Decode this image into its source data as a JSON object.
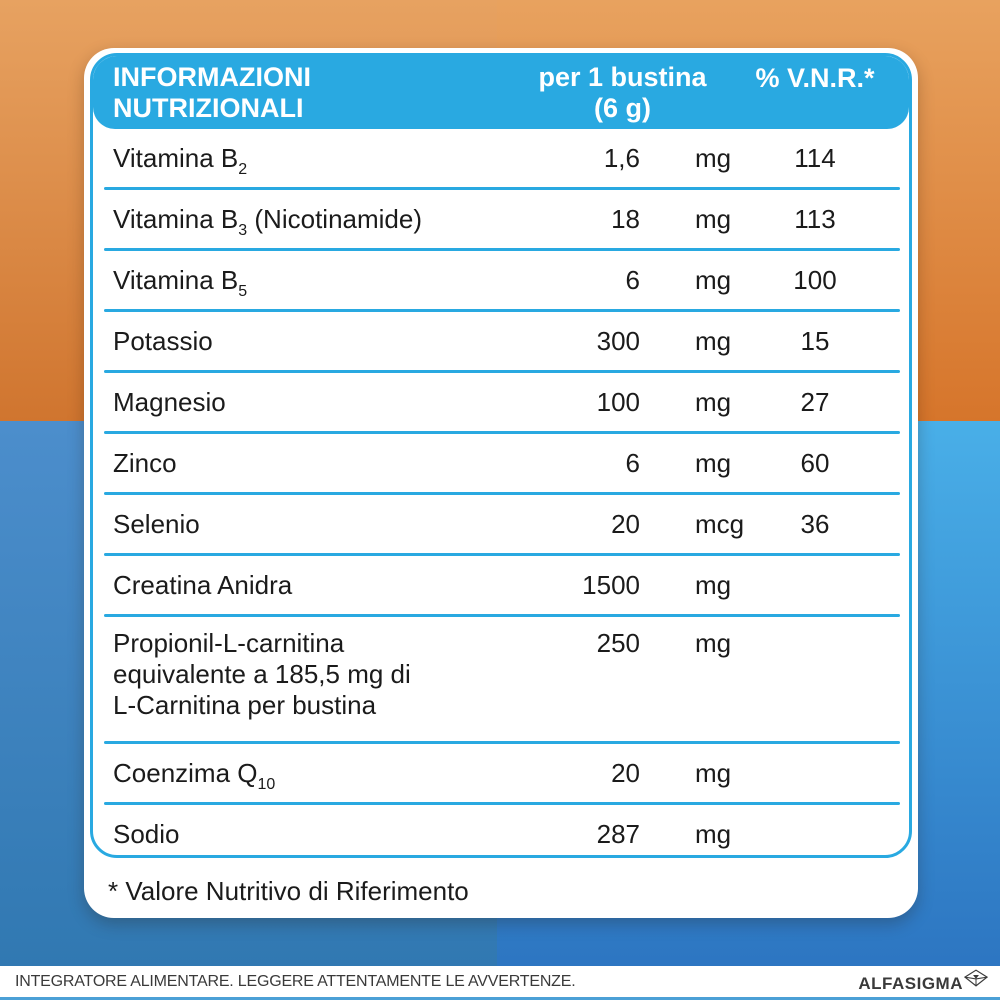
{
  "colors": {
    "accent": "#29A9E1",
    "text_color": "#1B1B1B",
    "card_bg": "#FFFFFF",
    "orange_left_top": "#E7A261",
    "orange_left_bottom": "#D0752F",
    "orange_right_top": "#E8A25F",
    "orange_right_bottom": "#D6752B",
    "blue_left_top": "#4C8ECC",
    "blue_left_bottom": "#2F77B0",
    "blue_right_top": "#49AFE8",
    "blue_right_bottom": "#2B72BF",
    "bottom_strip": "#4BA0D6",
    "footer_text": "#3A3A3A"
  },
  "table": {
    "header": {
      "title_line1": "INFORMAZIONI",
      "title_line2": "NUTRIZIONALI",
      "serving_line1": "per 1 bustina",
      "serving_line2": "(6 g)",
      "vnr_label": "% V.N.R.*"
    },
    "rows": [
      {
        "label": "Vitamina B",
        "label_sub": "2",
        "label_after": "",
        "extra_lines": [],
        "value": "1,6",
        "unit": "mg",
        "vnr": "114"
      },
      {
        "label": "Vitamina B",
        "label_sub": "3",
        "label_after": " (Nicotinamide)",
        "extra_lines": [],
        "value": "18",
        "unit": "mg",
        "vnr": "113"
      },
      {
        "label": "Vitamina B",
        "label_sub": "5",
        "label_after": "",
        "extra_lines": [],
        "value": "6",
        "unit": "mg",
        "vnr": "100"
      },
      {
        "label": "Potassio",
        "label_sub": "",
        "label_after": "",
        "extra_lines": [],
        "value": "300",
        "unit": "mg",
        "vnr": "15"
      },
      {
        "label": "Magnesio",
        "label_sub": "",
        "label_after": "",
        "extra_lines": [],
        "value": "100",
        "unit": "mg",
        "vnr": "27"
      },
      {
        "label": "Zinco",
        "label_sub": "",
        "label_after": "",
        "extra_lines": [],
        "value": "6",
        "unit": "mg",
        "vnr": "60"
      },
      {
        "label": "Selenio",
        "label_sub": "",
        "label_after": "",
        "extra_lines": [],
        "value": "20",
        "unit": "mcg",
        "vnr": "36"
      },
      {
        "label": "Creatina Anidra",
        "label_sub": "",
        "label_after": "",
        "extra_lines": [],
        "value": "1500",
        "unit": "mg",
        "vnr": ""
      },
      {
        "label": "Propionil-L-carnitina",
        "label_sub": "",
        "label_after": "",
        "extra_lines": [
          "equivalente a 185,5 mg di",
          "L-Carnitina per bustina"
        ],
        "value": "250",
        "unit": "mg",
        "vnr": ""
      },
      {
        "label": "Coenzima Q",
        "label_sub": "10",
        "label_after": "",
        "extra_lines": [],
        "value": "20",
        "unit": "mg",
        "vnr": ""
      },
      {
        "label": "Sodio",
        "label_sub": "",
        "label_after": "",
        "extra_lines": [],
        "value": "287",
        "unit": "mg",
        "vnr": ""
      }
    ],
    "footnote": "* Valore Nutritivo di Riferimento"
  },
  "footer": {
    "disclaimer": "INTEGRATORE ALIMENTARE. LEGGERE ATTENTAMENTE LE AVVERTENZE.",
    "brand": "ALFASIGMA",
    "brand_logo": "alfasigma-tetrahedron-logo"
  }
}
